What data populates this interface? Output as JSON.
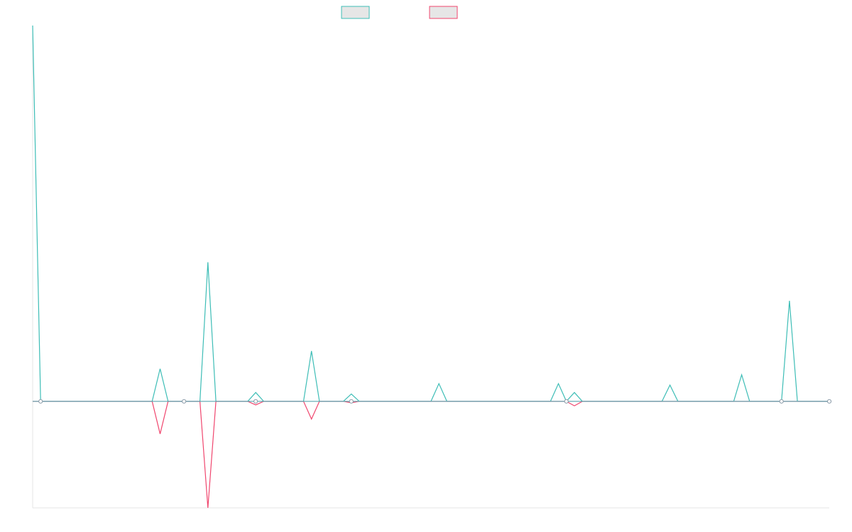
{
  "chart_data": {
    "type": "line",
    "title": "",
    "xlabel": "",
    "ylabel": "",
    "grid": false,
    "legend_position": "top-center",
    "ylim": [
      -3.6,
      12.7
    ],
    "series": [
      {
        "color": "#3dbdb6",
        "points": [
          [
            0,
            12.7
          ],
          [
            1,
            0
          ],
          [
            5,
            0
          ],
          [
            15,
            0
          ],
          [
            16,
            1.1
          ],
          [
            17,
            0
          ],
          [
            20,
            0
          ],
          [
            21,
            0
          ],
          [
            22,
            4.7
          ],
          [
            23,
            0
          ],
          [
            27,
            0
          ],
          [
            28,
            0.3
          ],
          [
            29,
            0
          ],
          [
            34,
            0
          ],
          [
            35,
            1.7
          ],
          [
            36,
            0
          ],
          [
            39,
            0
          ],
          [
            40,
            0.25
          ],
          [
            41,
            0
          ],
          [
            50,
            0
          ],
          [
            51,
            0.6
          ],
          [
            52,
            0
          ],
          [
            65,
            0
          ],
          [
            66,
            0.6
          ],
          [
            67,
            0
          ],
          [
            68,
            0.3
          ],
          [
            69,
            0
          ],
          [
            70,
            0
          ],
          [
            79,
            0
          ],
          [
            80,
            0.55
          ],
          [
            81,
            0
          ],
          [
            82,
            0
          ],
          [
            88,
            0
          ],
          [
            89,
            0.9
          ],
          [
            90,
            0
          ],
          [
            94,
            0
          ],
          [
            95,
            3.4
          ],
          [
            96,
            0
          ],
          [
            100,
            0
          ]
        ]
      },
      {
        "color": "#f0466e",
        "points": [
          [
            0,
            0
          ],
          [
            1,
            0
          ],
          [
            5,
            0
          ],
          [
            15,
            0
          ],
          [
            16,
            -1.1
          ],
          [
            17,
            0
          ],
          [
            20,
            0
          ],
          [
            21,
            0
          ],
          [
            22,
            -3.6
          ],
          [
            23,
            0
          ],
          [
            27,
            0
          ],
          [
            28,
            -0.12
          ],
          [
            29,
            0
          ],
          [
            34,
            0
          ],
          [
            35,
            -0.6
          ],
          [
            36,
            0
          ],
          [
            39,
            0
          ],
          [
            40,
            -0.05
          ],
          [
            41,
            0
          ],
          [
            50,
            0
          ],
          [
            51,
            0
          ],
          [
            52,
            0
          ],
          [
            65,
            0
          ],
          [
            66,
            0
          ],
          [
            67,
            0
          ],
          [
            68,
            -0.15
          ],
          [
            69,
            0
          ],
          [
            70,
            0
          ],
          [
            79,
            0
          ],
          [
            80,
            0
          ],
          [
            81,
            0
          ],
          [
            82,
            0
          ],
          [
            88,
            0
          ],
          [
            89,
            0
          ],
          [
            90,
            0
          ],
          [
            94,
            0
          ],
          [
            95,
            0
          ],
          [
            96,
            0
          ],
          [
            100,
            0
          ]
        ]
      }
    ],
    "markers": [
      {
        "x": 1,
        "y": 0
      },
      {
        "x": 19,
        "y": 0
      },
      {
        "x": 28,
        "y": 0
      },
      {
        "x": 40,
        "y": 0
      },
      {
        "x": 67,
        "y": 0
      },
      {
        "x": 94,
        "y": 0
      },
      {
        "x": 100,
        "y": 0
      }
    ]
  }
}
